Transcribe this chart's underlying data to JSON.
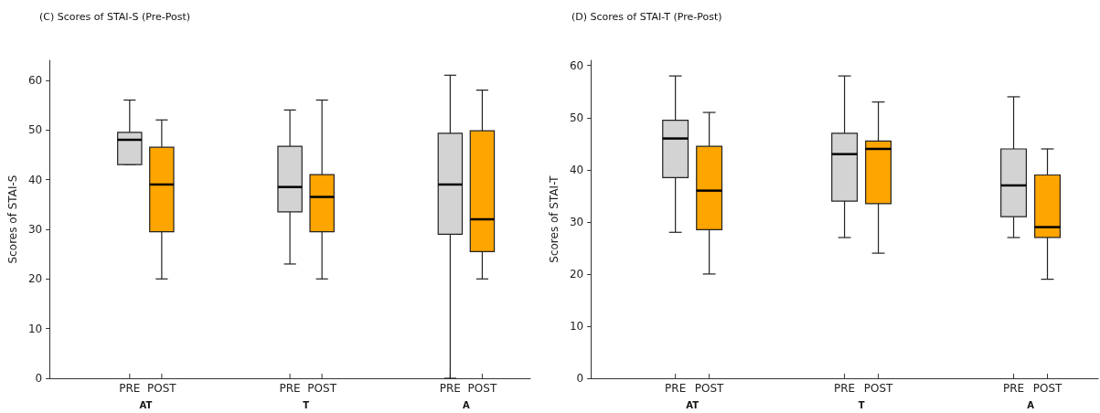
{
  "chart_data": [
    {
      "type": "box",
      "title": "(C) Scores of STAI-S (Pre-Post)",
      "ylabel": "Scores of STAI-S",
      "ylim": [
        0,
        64
      ],
      "yticks": [
        0,
        10,
        20,
        30,
        40,
        50,
        60
      ],
      "categories": [
        null,
        null,
        "PRE",
        "POST",
        null,
        null,
        null,
        "PRE",
        "POST",
        null,
        null,
        null,
        "PRE",
        "POST",
        null
      ],
      "colors": [
        null,
        null,
        "#d3d3d3",
        "#ffa500",
        null,
        null,
        null,
        "#d3d3d3",
        "#ffa500",
        null,
        null,
        null,
        "#d3d3d3",
        "#ffa500",
        null
      ],
      "annotations": [
        "AT",
        "T",
        "A"
      ],
      "boxes": [
        null,
        null,
        {
          "low": 43,
          "q1": 43,
          "median": 48,
          "q3": 49.5,
          "high": 56
        },
        {
          "low": 20,
          "q1": 29.5,
          "median": 39,
          "q3": 46.5,
          "high": 52
        },
        null,
        null,
        null,
        {
          "low": 23,
          "q1": 33.5,
          "median": 38.5,
          "q3": 46.7,
          "high": 54
        },
        {
          "low": 20,
          "q1": 29.5,
          "median": 36.5,
          "q3": 41,
          "high": 56
        },
        null,
        null,
        null,
        {
          "low": 0,
          "q1": 29,
          "median": 39,
          "q3": 49.3,
          "high": 61
        },
        {
          "low": 20,
          "q1": 25.5,
          "median": 32,
          "q3": 49.8,
          "high": 58
        },
        null
      ]
    },
    {
      "type": "box",
      "title": "(D) Scores of STAI-T (Pre-Post)",
      "ylabel": "Scores of STAI-T",
      "ylim": [
        0,
        61
      ],
      "yticks": [
        0,
        10,
        20,
        30,
        40,
        50,
        60
      ],
      "categories": [
        null,
        null,
        "PRE",
        "POST",
        null,
        null,
        null,
        "PRE",
        "POST",
        null,
        null,
        null,
        "PRE",
        "POST",
        null
      ],
      "colors": [
        null,
        null,
        "#d3d3d3",
        "#ffa500",
        null,
        null,
        null,
        "#d3d3d3",
        "#ffa500",
        null,
        null,
        null,
        "#d3d3d3",
        "#ffa500",
        null
      ],
      "annotations": [
        "AT",
        "T",
        "A"
      ],
      "boxes": [
        null,
        null,
        {
          "low": 28,
          "q1": 38.5,
          "median": 46,
          "q3": 49.5,
          "high": 58
        },
        {
          "low": 20,
          "q1": 28.5,
          "median": 36,
          "q3": 44.5,
          "high": 51
        },
        null,
        null,
        null,
        {
          "low": 27,
          "q1": 34,
          "median": 43,
          "q3": 47,
          "high": 58
        },
        {
          "low": 24,
          "q1": 33.5,
          "median": 44,
          "q3": 45.5,
          "high": 53
        },
        null,
        null,
        null,
        {
          "low": 27,
          "q1": 31,
          "median": 37,
          "q3": 44,
          "high": 54
        },
        {
          "low": 19,
          "q1": 27,
          "median": 29,
          "q3": 39,
          "high": 44
        },
        null
      ]
    }
  ]
}
